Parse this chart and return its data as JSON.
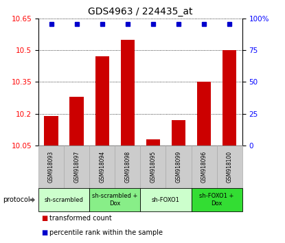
{
  "title": "GDS4963 / 224435_at",
  "samples": [
    "GSM918093",
    "GSM918097",
    "GSM918094",
    "GSM918098",
    "GSM918095",
    "GSM918099",
    "GSM918096",
    "GSM918100"
  ],
  "bar_values": [
    10.19,
    10.28,
    10.47,
    10.55,
    10.08,
    10.17,
    10.35,
    10.5
  ],
  "ylim_left": [
    10.05,
    10.65
  ],
  "ylim_right": [
    0,
    100
  ],
  "yticks_left": [
    10.05,
    10.2,
    10.35,
    10.5,
    10.65
  ],
  "yticks_right": [
    0,
    25,
    50,
    75,
    100
  ],
  "bar_color": "#cc0000",
  "dot_color": "#0000cc",
  "groups": [
    {
      "label": "sh-scrambled",
      "start": 0,
      "end": 2,
      "color": "#ccffcc"
    },
    {
      "label": "sh-scrambled +\nDox",
      "start": 2,
      "end": 4,
      "color": "#88ee88"
    },
    {
      "label": "sh-FOXO1",
      "start": 4,
      "end": 6,
      "color": "#ccffcc"
    },
    {
      "label": "sh-FOXO1 +\nDox",
      "start": 6,
      "end": 8,
      "color": "#33dd33"
    }
  ],
  "protocol_label": "protocol",
  "legend_bar_label": "transformed count",
  "legend_dot_label": "percentile rank within the sample",
  "title_fontsize": 10,
  "tick_fontsize": 7.5,
  "label_fontsize": 7
}
